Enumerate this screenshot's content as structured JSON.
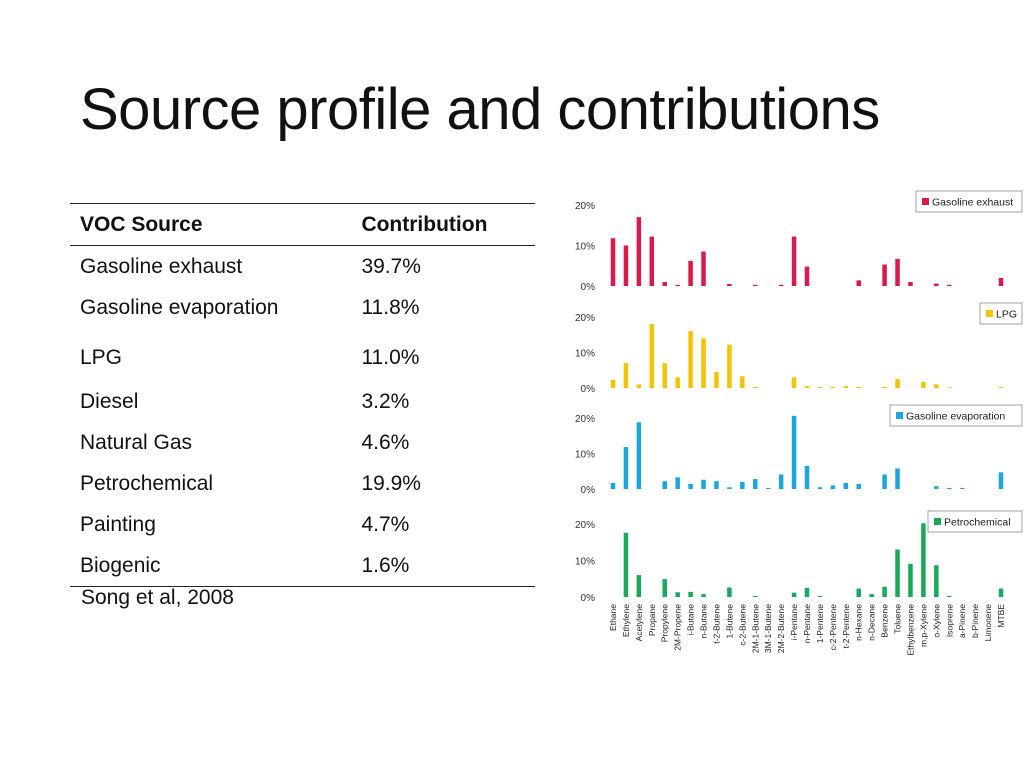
{
  "title": "Source profile and contributions",
  "table": {
    "headers": [
      "VOC Source",
      "Contribution"
    ],
    "rows": [
      {
        "source": "Gasoline exhaust",
        "contribution": "39.7%"
      },
      {
        "source": "Gasoline evaporation",
        "contribution": "11.8%"
      },
      {
        "source": "LPG",
        "contribution": "11.0%"
      },
      {
        "source": "Diesel",
        "contribution": "3.2%"
      },
      {
        "source": "Natural Gas",
        "contribution": "4.6%"
      },
      {
        "source": "Petrochemical",
        "contribution": "19.9%"
      },
      {
        "source": "Painting",
        "contribution": "4.7%"
      },
      {
        "source": "Biogenic",
        "contribution": "1.6%"
      }
    ]
  },
  "citation": "Song et al, 2008",
  "chart_data": {
    "type": "bar",
    "categories": [
      "Ethane",
      "Ethylene",
      "Acetylene",
      "Propane",
      "Propylene",
      "2M-Propene",
      "i-Butane",
      "n-Butane",
      "t-2-Butene",
      "1-Butene",
      "c-2-Butene",
      "2M-1-Butene",
      "3M-1-Butene",
      "2M-2-Butene",
      "i-Pentane",
      "n-Pentane",
      "1-Pentene",
      "c-2-Pentene",
      "t-2-Pentene",
      "n-Hexane",
      "n-Decane",
      "Benzene",
      "Toluene",
      "Ethylbenzene",
      "m,p-Xylene",
      "o-Xylene",
      "Isoprene",
      "a-Pinene",
      "b-Pinene",
      "Limonene",
      "MTBE"
    ],
    "y_tick_labels": [
      "0%",
      "10%",
      "20%"
    ],
    "ylim": [
      0,
      20
    ],
    "panels": [
      {
        "name": "Gasoline exhaust",
        "color": "#d81b4c",
        "values": [
          11.8,
          10.0,
          17.0,
          12.2,
          1.0,
          0.3,
          6.2,
          8.5,
          0,
          0.5,
          0,
          0.3,
          0,
          0.3,
          12.2,
          4.8,
          0,
          0,
          0,
          1.4,
          0,
          5.3,
          6.7,
          1.0,
          0,
          0.6,
          0.3,
          0,
          0,
          0,
          2.0
        ]
      },
      {
        "name": "LPG",
        "color": "#f5c400",
        "values": [
          2.3,
          7.0,
          1.0,
          18.0,
          7.0,
          3.0,
          16.0,
          14.0,
          4.5,
          12.2,
          3.3,
          0.3,
          0,
          0,
          3.0,
          0.5,
          0.3,
          0.3,
          0.5,
          0.3,
          0,
          0.3,
          2.5,
          0,
          1.7,
          1.0,
          0.2,
          0,
          0,
          0,
          0.3
        ]
      },
      {
        "name": "Gasoline evaporation",
        "color": "#1ba6dc",
        "values": [
          1.7,
          11.8,
          18.8,
          0,
          2.2,
          3.3,
          1.4,
          2.6,
          2.2,
          0.5,
          2.0,
          2.8,
          0.3,
          4.1,
          20.6,
          6.5,
          0.5,
          1.0,
          1.7,
          1.4,
          0,
          4.1,
          5.8,
          0,
          0,
          0.8,
          0.3,
          0.3,
          0,
          0,
          4.7
        ]
      },
      {
        "name": "Petrochemical",
        "color": "#1aa85a",
        "values": [
          0,
          17.6,
          6.0,
          0,
          4.9,
          1.3,
          1.4,
          0.8,
          0,
          2.6,
          0,
          0.3,
          0,
          0,
          1.2,
          2.5,
          0.3,
          0,
          0,
          2.3,
          0.8,
          2.8,
          13.0,
          9.1,
          20.2,
          8.7,
          0.3,
          0,
          0,
          0,
          2.3
        ]
      }
    ]
  }
}
